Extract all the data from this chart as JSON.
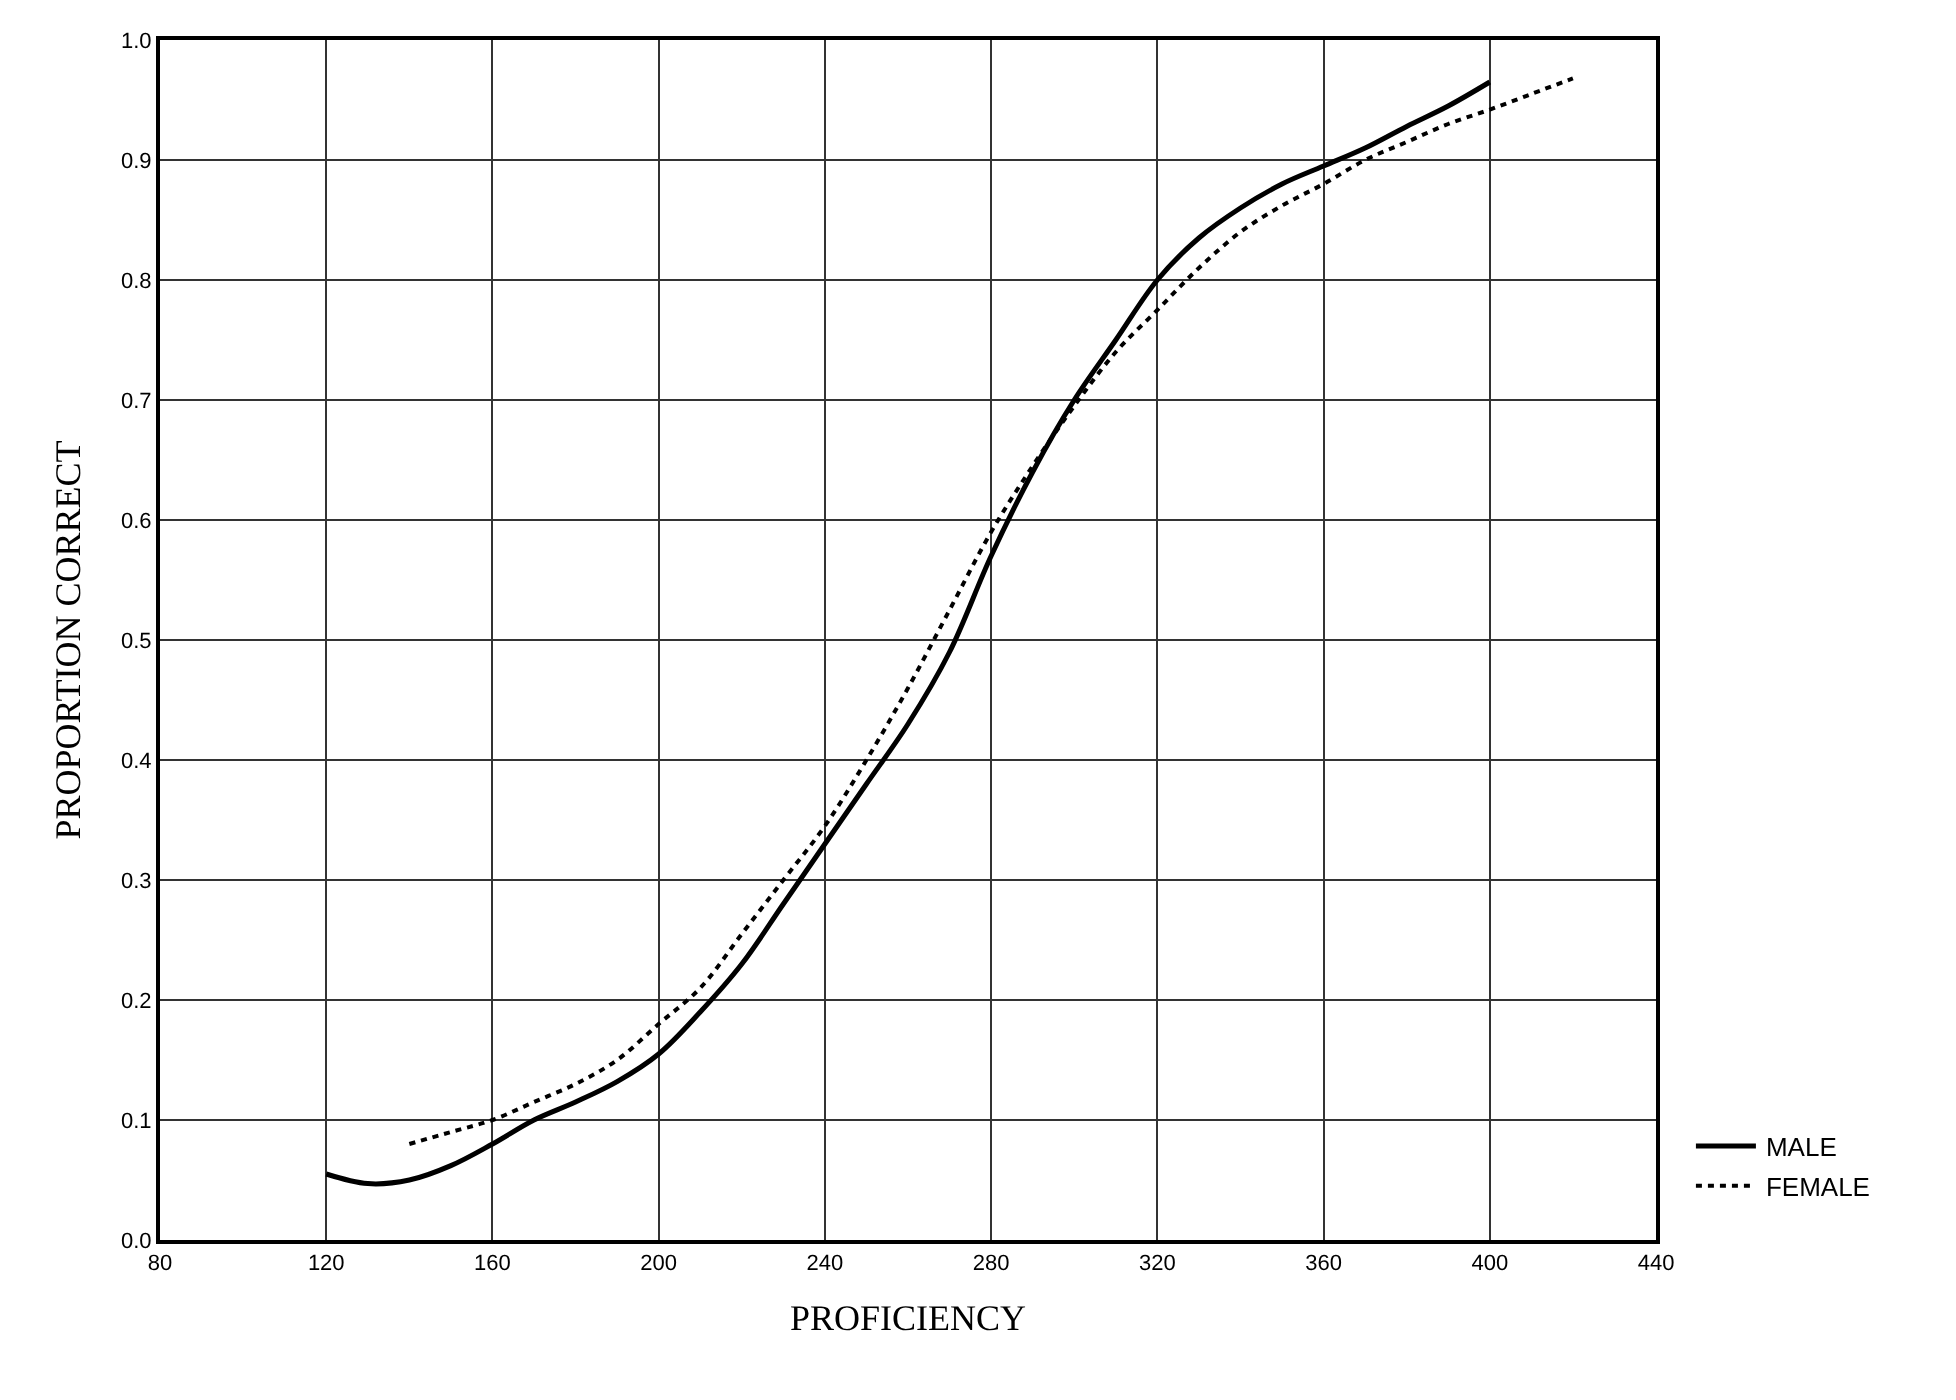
{
  "chart_data": {
    "type": "line",
    "xlabel": "PROFICIENCY",
    "ylabel": "PROPORTION CORRECT",
    "series": [
      {
        "name": "MALE",
        "color": "#000000",
        "line_style": "solid",
        "x": [
          120,
          130,
          140,
          150,
          160,
          170,
          180,
          190,
          200,
          210,
          220,
          230,
          240,
          250,
          260,
          270,
          280,
          290,
          300,
          310,
          320,
          330,
          340,
          350,
          360,
          370,
          380,
          390,
          400
        ],
        "values": [
          0.055,
          0.047,
          0.05,
          0.062,
          0.08,
          0.1,
          0.115,
          0.132,
          0.155,
          0.19,
          0.23,
          0.28,
          0.33,
          0.38,
          0.43,
          0.49,
          0.57,
          0.64,
          0.7,
          0.75,
          0.8,
          0.835,
          0.86,
          0.88,
          0.895,
          0.91,
          0.928,
          0.945,
          0.965
        ]
      },
      {
        "name": "FEMALE",
        "color": "#000000",
        "line_style": "dotted",
        "x": [
          140,
          150,
          160,
          170,
          180,
          190,
          200,
          210,
          220,
          230,
          240,
          250,
          260,
          270,
          280,
          290,
          300,
          310,
          320,
          330,
          340,
          350,
          360,
          370,
          380,
          390,
          400,
          410,
          420
        ],
        "values": [
          0.08,
          0.09,
          0.1,
          0.115,
          0.13,
          0.15,
          0.18,
          0.21,
          0.255,
          0.3,
          0.345,
          0.4,
          0.46,
          0.525,
          0.59,
          0.645,
          0.695,
          0.74,
          0.775,
          0.81,
          0.84,
          0.862,
          0.88,
          0.9,
          0.915,
          0.93,
          0.942,
          0.955,
          0.968
        ]
      }
    ],
    "xlim": [
      80,
      440
    ],
    "xticks": [
      80,
      120,
      160,
      200,
      240,
      280,
      320,
      360,
      400,
      440
    ],
    "ylim": [
      0,
      1
    ],
    "yticks": [
      {
        "value": 0,
        "label": "0.0"
      },
      0.1,
      0.2,
      0.3,
      0.4,
      0.5,
      0.6,
      0.7,
      0.8,
      0.9,
      {
        "value": 1,
        "label": "1.0"
      }
    ],
    "grid": true,
    "legend": "bottom right",
    "marker": "none"
  }
}
